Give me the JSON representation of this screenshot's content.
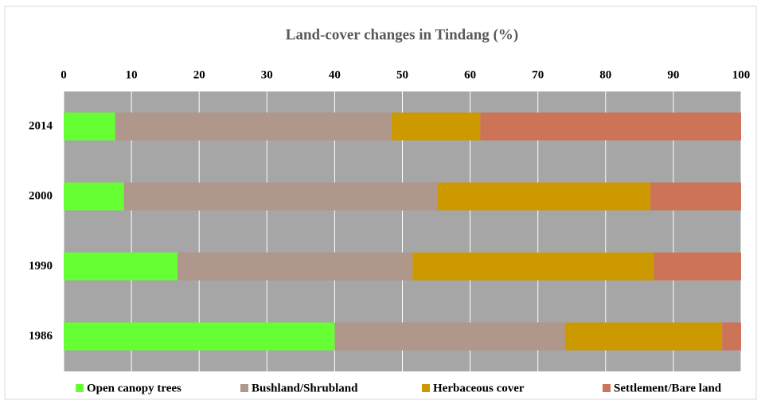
{
  "chart_data": {
    "type": "stacked_bar_horizontal",
    "title": "Land-cover changes in Tindang (%)",
    "categories": [
      "2014",
      "2000",
      "1990",
      "1986"
    ],
    "series": [
      {
        "name": "Open canopy trees",
        "color": "#66ff33",
        "values": [
          7.6,
          8.9,
          16.8,
          40.0
        ]
      },
      {
        "name": "Bushland/Shrubland",
        "color": "#b0978b",
        "values": [
          40.8,
          46.3,
          34.7,
          34.0
        ]
      },
      {
        "name": "Herbaceous cover",
        "color": "#cc9900",
        "values": [
          13.1,
          31.4,
          35.6,
          23.2
        ]
      },
      {
        "name": "Settlement/Bare land",
        "color": "#cd7458",
        "values": [
          38.5,
          13.4,
          12.9,
          2.8
        ]
      }
    ],
    "xlim": [
      0,
      100
    ],
    "xticks": [
      0,
      10,
      20,
      30,
      40,
      50,
      60,
      70,
      80,
      90,
      100
    ],
    "grid": true,
    "legend": "bottom"
  }
}
